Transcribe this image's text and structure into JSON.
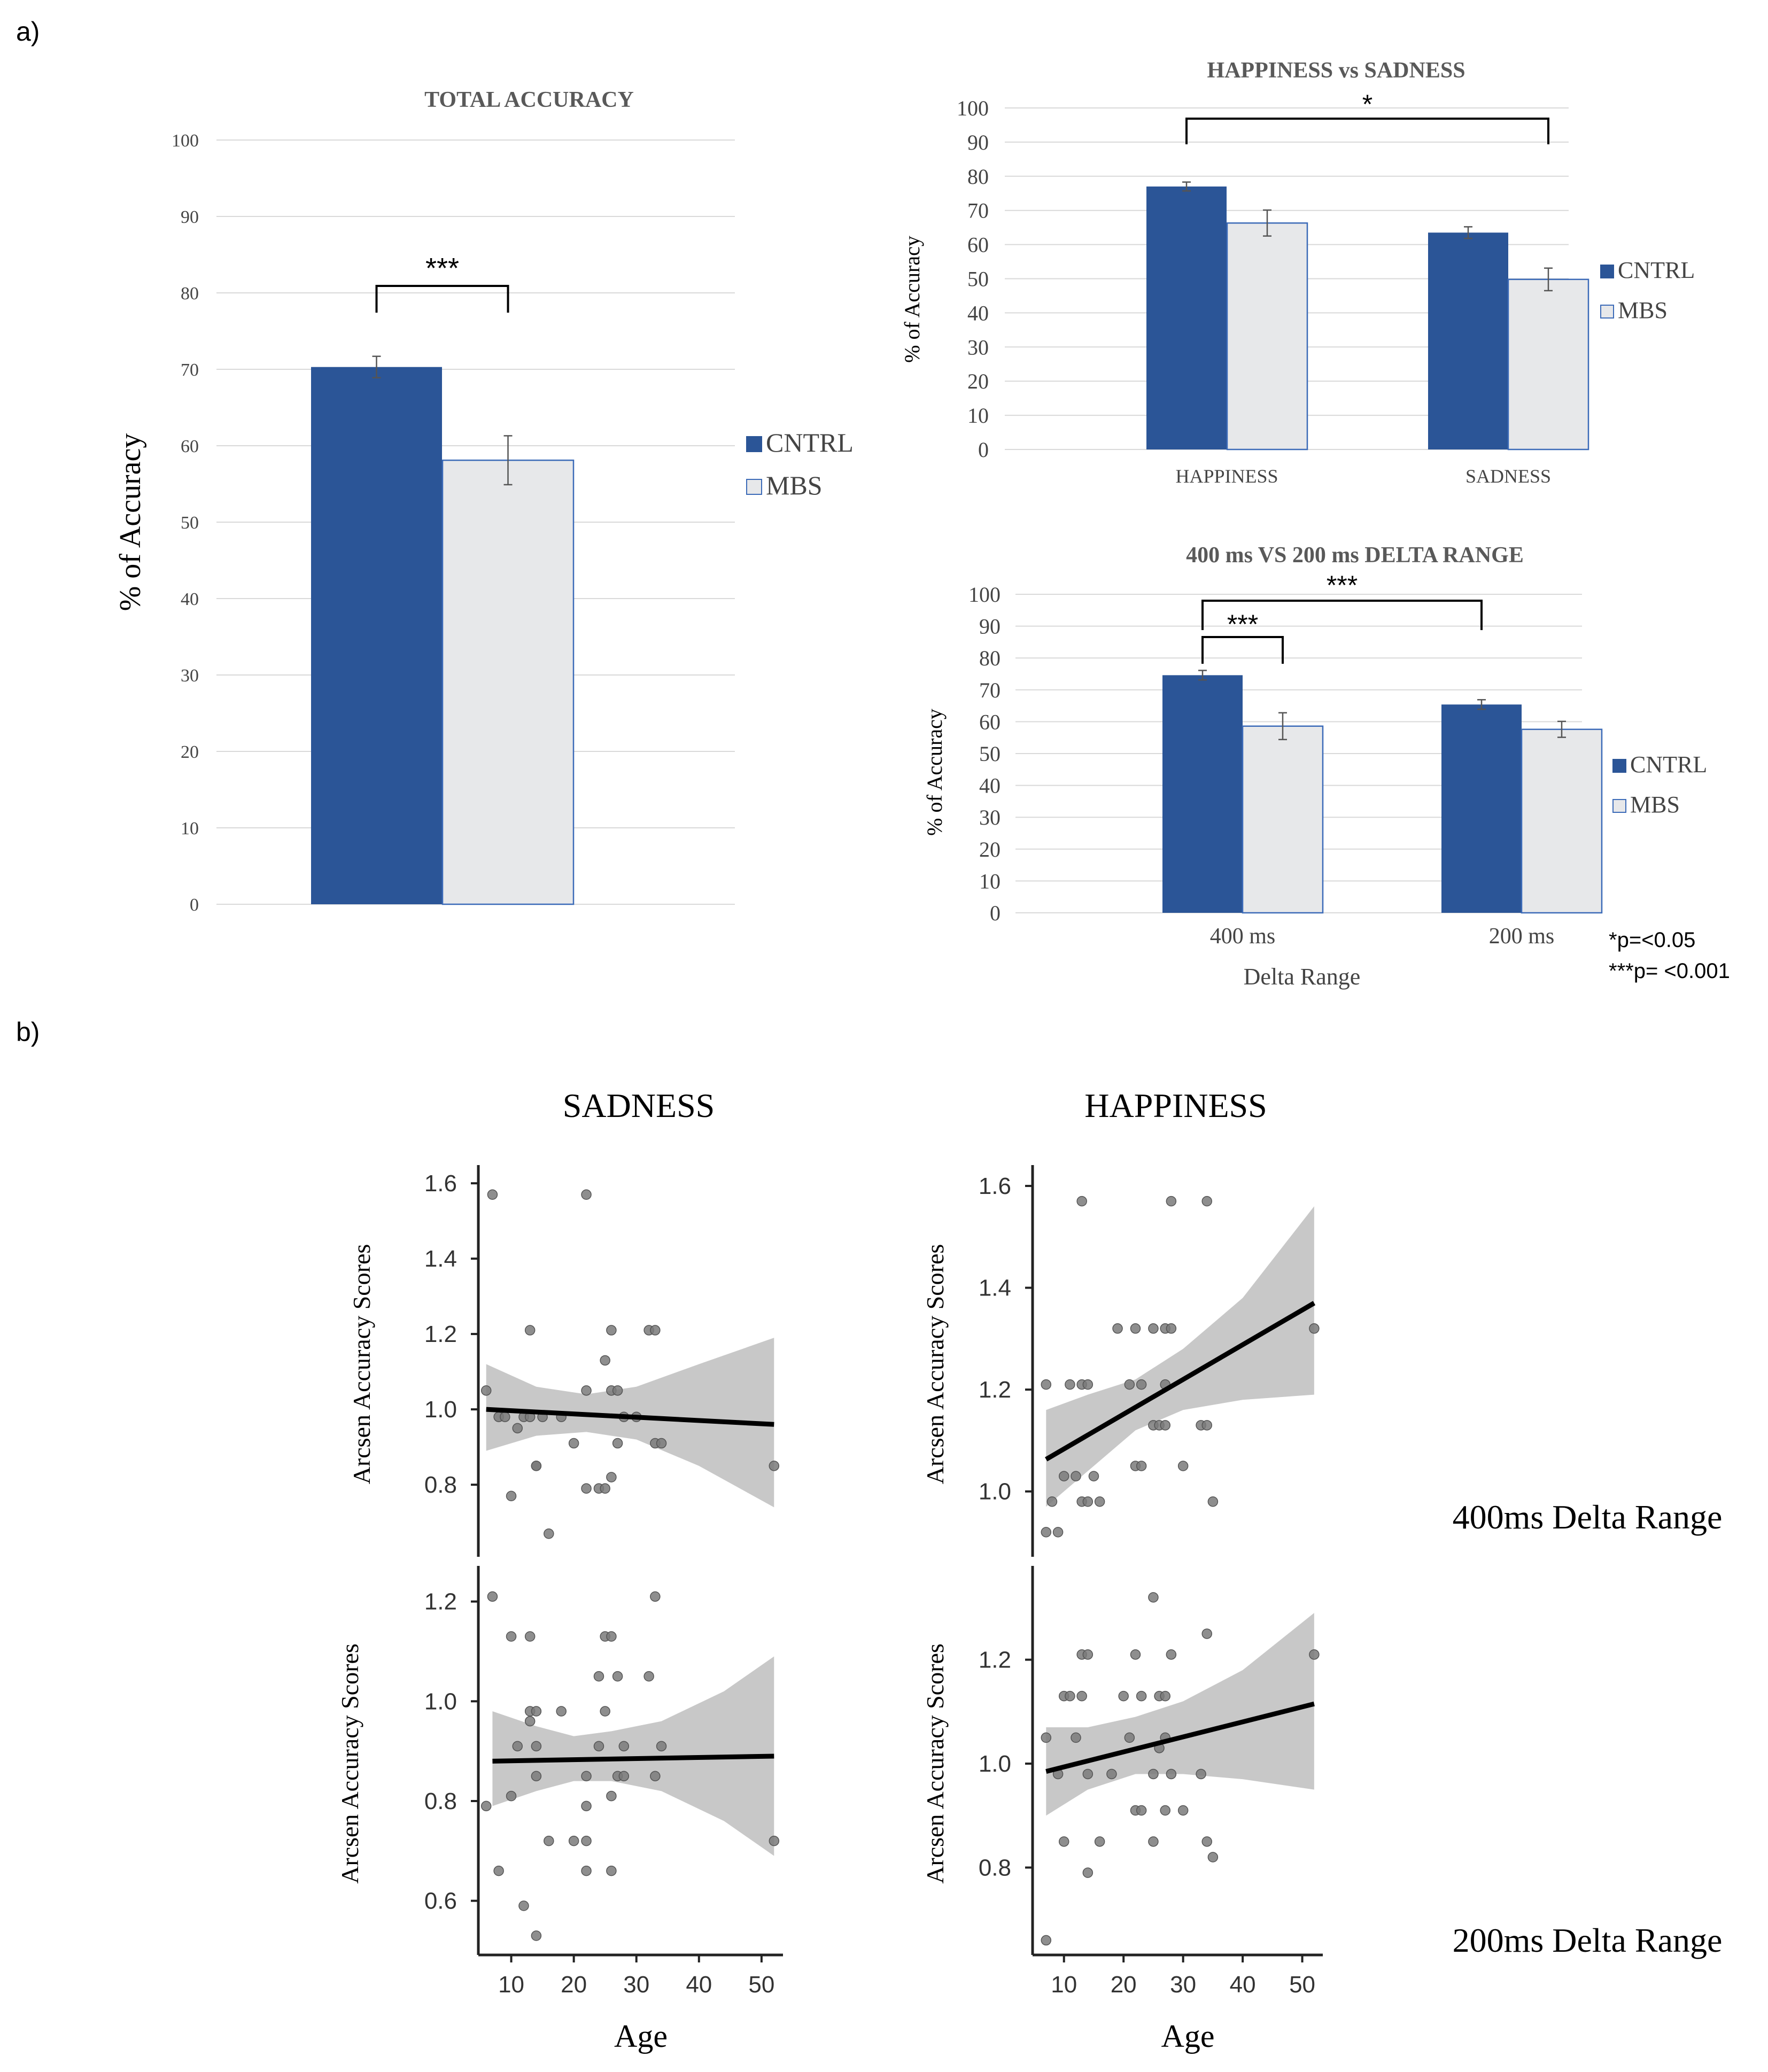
{
  "labels": {
    "panel_a": "a)",
    "panel_b": "b)",
    "sig_note_1": "*p=<0.05",
    "sig_note_2": "***p= <0.001",
    "row_400": "400ms Delta Range",
    "row_200": "200ms Delta Range",
    "col_sadness": "SADNESS",
    "col_happiness": "HAPPINESS"
  },
  "colors": {
    "cntrl": "#2b5597",
    "mbs": "#e7e8ea",
    "mbs_border": "#3c6bb8",
    "grid": "#d9d9d9",
    "text": "#595959",
    "band": "#c8c8c8",
    "point": "#7a7a7a"
  },
  "chart_data": [
    {
      "id": "total",
      "type": "bar",
      "title": "TOTAL ACCURACY",
      "ylabel": "% of Accuracy",
      "xlabel": "",
      "ylim": [
        0,
        100
      ],
      "yticks": [
        "0",
        "10",
        "20",
        "30",
        "40",
        "50",
        "60",
        "70",
        "80",
        "90",
        "100"
      ],
      "categories": [
        ""
      ],
      "series": [
        {
          "name": "CNTRL",
          "values": [
            70.3
          ],
          "err": [
            1.4
          ]
        },
        {
          "name": "MBS",
          "values": [
            58.1
          ],
          "err": [
            3.2
          ]
        }
      ],
      "legend": [
        "CNTRL",
        "MBS"
      ],
      "sig": [
        {
          "label": "***",
          "from": [
            0,
            0
          ],
          "to": [
            0,
            1
          ]
        }
      ]
    },
    {
      "id": "hvs",
      "type": "bar",
      "title": "HAPPINESS vs  SADNESS",
      "ylabel": "% of Accuracy",
      "xlabel": "",
      "ylim": [
        0,
        100
      ],
      "yticks": [
        "0",
        "10",
        "20",
        "30",
        "40",
        "50",
        "60",
        "70",
        "80",
        "90",
        "100"
      ],
      "categories": [
        "HAPPINESS",
        "SADNESS"
      ],
      "series": [
        {
          "name": "CNTRL",
          "values": [
            77,
            63.5
          ],
          "err": [
            1.3,
            1.7
          ]
        },
        {
          "name": "MBS",
          "values": [
            66.3,
            49.8
          ],
          "err": [
            3.8,
            3.3
          ]
        }
      ],
      "legend": [
        "CNTRL",
        "MBS"
      ],
      "sig": [
        {
          "label": "*",
          "from": [
            0,
            0
          ],
          "to": [
            1,
            1
          ]
        }
      ]
    },
    {
      "id": "delta",
      "type": "bar",
      "title": "400 ms VS 200 ms DELTA RANGE",
      "ylabel": "% of Accuracy",
      "xlabel": "Delta Range",
      "ylim": [
        0,
        100
      ],
      "yticks": [
        "0",
        "10",
        "20",
        "30",
        "40",
        "50",
        "60",
        "70",
        "80",
        "90",
        "100"
      ],
      "categories": [
        "400 ms",
        "200 ms"
      ],
      "series": [
        {
          "name": "CNTRL",
          "values": [
            74.6,
            65.4
          ],
          "err": [
            1.5,
            1.5
          ]
        },
        {
          "name": "MBS",
          "values": [
            58.6,
            57.6
          ],
          "err": [
            4.2,
            2.5
          ]
        }
      ],
      "legend": [
        "CNTRL",
        "MBS"
      ],
      "sig": [
        {
          "label": "***",
          "from": [
            0,
            0
          ],
          "to": [
            0,
            1
          ]
        },
        {
          "label": "***",
          "from": [
            0,
            0
          ],
          "to": [
            1,
            0
          ]
        }
      ]
    },
    {
      "id": "sad400",
      "type": "scatter",
      "title": "",
      "xlabel": "",
      "ylabel": "Arcsen Accuracy Scores",
      "xlim": [
        5,
        53
      ],
      "ylim": [
        0.62,
        1.62
      ],
      "xticks": [],
      "yticks": [
        "0.8",
        "1.0",
        "1.2",
        "1.4",
        "1.6"
      ],
      "points": [
        [
          7,
          1.57
        ],
        [
          6,
          1.05
        ],
        [
          8,
          0.98
        ],
        [
          9,
          0.98
        ],
        [
          10,
          0.77
        ],
        [
          11,
          0.95
        ],
        [
          12,
          0.98
        ],
        [
          13,
          1.21
        ],
        [
          13,
          0.98
        ],
        [
          14,
          0.85
        ],
        [
          14,
          0.85
        ],
        [
          15,
          0.98
        ],
        [
          16,
          0.67
        ],
        [
          18,
          0.98
        ],
        [
          20,
          0.91
        ],
        [
          22,
          1.57
        ],
        [
          22,
          0.79
        ],
        [
          22,
          1.05
        ],
        [
          24,
          0.79
        ],
        [
          25,
          0.79
        ],
        [
          25,
          1.13
        ],
        [
          26,
          1.05
        ],
        [
          26,
          1.21
        ],
        [
          26,
          0.82
        ],
        [
          27,
          0.91
        ],
        [
          27,
          1.05
        ],
        [
          28,
          0.98
        ],
        [
          30,
          0.98
        ],
        [
          32,
          1.21
        ],
        [
          33,
          1.21
        ],
        [
          33,
          0.91
        ],
        [
          34,
          0.91
        ],
        [
          52,
          0.85
        ]
      ],
      "fit": {
        "x": [
          6,
          52
        ],
        "y": [
          1.0,
          0.96
        ]
      },
      "band": {
        "x": [
          6,
          14,
          22,
          30,
          40,
          52
        ],
        "upper": [
          1.12,
          1.06,
          1.04,
          1.06,
          1.12,
          1.19
        ],
        "lower": [
          0.89,
          0.93,
          0.94,
          0.92,
          0.85,
          0.74
        ]
      }
    },
    {
      "id": "hap400",
      "type": "scatter",
      "title": "",
      "xlabel": "",
      "ylabel": "Arcsen Accuracy Scores",
      "xlim": [
        5,
        53
      ],
      "ylim": [
        0.88,
        1.62
      ],
      "xticks": [],
      "yticks": [
        "1.0",
        "1.2",
        "1.4",
        "1.6"
      ],
      "points": [
        [
          7,
          0.92
        ],
        [
          9,
          0.92
        ],
        [
          8,
          0.98
        ],
        [
          10,
          1.03
        ],
        [
          7,
          1.21
        ],
        [
          11,
          1.21
        ],
        [
          12,
          1.03
        ],
        [
          13,
          1.57
        ],
        [
          13,
          1.21
        ],
        [
          13,
          0.98
        ],
        [
          14,
          1.21
        ],
        [
          14,
          0.98
        ],
        [
          15,
          1.03
        ],
        [
          16,
          0.98
        ],
        [
          19,
          1.32
        ],
        [
          21,
          1.21
        ],
        [
          22,
          1.32
        ],
        [
          22,
          1.05
        ],
        [
          23,
          1.21
        ],
        [
          23,
          1.05
        ],
        [
          25,
          1.32
        ],
        [
          25,
          1.13
        ],
        [
          26,
          1.13
        ],
        [
          27,
          1.32
        ],
        [
          27,
          1.21
        ],
        [
          27,
          1.13
        ],
        [
          28,
          1.57
        ],
        [
          28,
          1.32
        ],
        [
          30,
          1.05
        ],
        [
          33,
          1.13
        ],
        [
          34,
          1.13
        ],
        [
          34,
          1.57
        ],
        [
          35,
          0.98
        ],
        [
          52,
          1.32
        ]
      ],
      "fit": {
        "x": [
          7,
          52
        ],
        "y": [
          1.063,
          1.37
        ]
      },
      "band": {
        "x": [
          7,
          14,
          22,
          30,
          40,
          52
        ],
        "upper": [
          1.16,
          1.19,
          1.22,
          1.28,
          1.38,
          1.56
        ],
        "lower": [
          0.97,
          1.04,
          1.12,
          1.16,
          1.18,
          1.19
        ]
      }
    },
    {
      "id": "sad200",
      "type": "scatter",
      "title": "",
      "xlabel": "Age",
      "ylabel": "Arcsen Accuracy Scores",
      "xlim": [
        5,
        53
      ],
      "ylim": [
        0.5,
        1.25
      ],
      "xticks": [
        "10",
        "20",
        "30",
        "40",
        "50"
      ],
      "yticks": [
        "0.6",
        "0.8",
        "1.0",
        "1.2"
      ],
      "points": [
        [
          7,
          1.21
        ],
        [
          6,
          0.79
        ],
        [
          8,
          0.66
        ],
        [
          10,
          0.81
        ],
        [
          10,
          1.13
        ],
        [
          11,
          0.91
        ],
        [
          12,
          0.59
        ],
        [
          13,
          1.13
        ],
        [
          13,
          0.98
        ],
        [
          13,
          0.96
        ],
        [
          14,
          0.85
        ],
        [
          14,
          0.98
        ],
        [
          14,
          0.91
        ],
        [
          14,
          0.53
        ],
        [
          16,
          0.72
        ],
        [
          18,
          0.98
        ],
        [
          20,
          0.72
        ],
        [
          22,
          0.72
        ],
        [
          22,
          0.66
        ],
        [
          22,
          0.79
        ],
        [
          22,
          0.85
        ],
        [
          24,
          0.91
        ],
        [
          24,
          1.05
        ],
        [
          25,
          0.98
        ],
        [
          25,
          1.13
        ],
        [
          26,
          0.66
        ],
        [
          26,
          0.81
        ],
        [
          26,
          1.13
        ],
        [
          27,
          1.05
        ],
        [
          27,
          0.85
        ],
        [
          28,
          0.91
        ],
        [
          28,
          0.85
        ],
        [
          32,
          1.05
        ],
        [
          33,
          1.21
        ],
        [
          33,
          0.85
        ],
        [
          34,
          0.91
        ],
        [
          52,
          0.72
        ]
      ],
      "fit": {
        "x": [
          7,
          52
        ],
        "y": [
          0.88,
          0.89
        ]
      },
      "band": {
        "x": [
          7,
          14,
          20,
          26,
          34,
          44,
          52
        ],
        "upper": [
          0.98,
          0.95,
          0.93,
          0.94,
          0.96,
          1.02,
          1.09
        ],
        "lower": [
          0.79,
          0.82,
          0.84,
          0.84,
          0.82,
          0.76,
          0.69
        ]
      }
    },
    {
      "id": "hap200",
      "type": "scatter",
      "title": "",
      "xlabel": "Age",
      "ylabel": "Arcsen Accuracy Scores",
      "xlim": [
        5,
        53
      ],
      "ylim": [
        0.64,
        1.36
      ],
      "xticks": [
        "10",
        "20",
        "30",
        "40",
        "50"
      ],
      "yticks": [
        "0.8",
        "1.0",
        "1.2"
      ],
      "points": [
        [
          7,
          1.05
        ],
        [
          7,
          0.66
        ],
        [
          9,
          0.98
        ],
        [
          10,
          1.13
        ],
        [
          10,
          0.85
        ],
        [
          11,
          1.13
        ],
        [
          12,
          1.05
        ],
        [
          13,
          1.21
        ],
        [
          13,
          1.13
        ],
        [
          14,
          1.21
        ],
        [
          14,
          0.98
        ],
        [
          14,
          0.79
        ],
        [
          16,
          0.85
        ],
        [
          18,
          0.98
        ],
        [
          20,
          1.13
        ],
        [
          21,
          1.05
        ],
        [
          22,
          1.21
        ],
        [
          22,
          0.91
        ],
        [
          23,
          1.13
        ],
        [
          23,
          0.91
        ],
        [
          25,
          1.32
        ],
        [
          25,
          0.98
        ],
        [
          25,
          0.85
        ],
        [
          26,
          1.13
        ],
        [
          26,
          1.03
        ],
        [
          27,
          0.91
        ],
        [
          27,
          1.13
        ],
        [
          27,
          1.05
        ],
        [
          28,
          1.21
        ],
        [
          28,
          0.98
        ],
        [
          30,
          0.91
        ],
        [
          33,
          0.98
        ],
        [
          34,
          1.25
        ],
        [
          34,
          0.85
        ],
        [
          35,
          0.82
        ],
        [
          52,
          1.21
        ]
      ],
      "fit": {
        "x": [
          7,
          52
        ],
        "y": [
          0.985,
          1.115
        ]
      },
      "band": {
        "x": [
          7,
          14,
          22,
          30,
          40,
          52
        ],
        "upper": [
          1.07,
          1.07,
          1.09,
          1.12,
          1.18,
          1.29
        ],
        "lower": [
          0.9,
          0.95,
          0.98,
          0.98,
          0.97,
          0.95
        ]
      }
    }
  ]
}
